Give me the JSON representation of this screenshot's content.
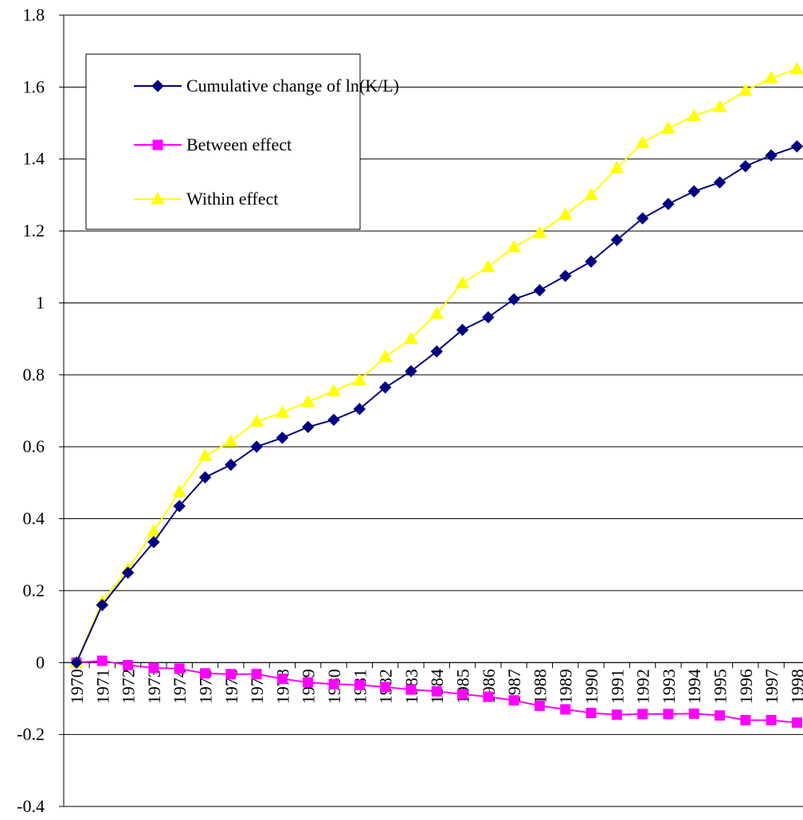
{
  "chart_data": {
    "type": "line",
    "categories": [
      "1970",
      "1971",
      "1972",
      "1973",
      "1974",
      "1975",
      "1976",
      "1977",
      "1978",
      "1979",
      "1980",
      "1981",
      "1982",
      "1983",
      "1984",
      "1985",
      "1986",
      "1987",
      "1988",
      "1989",
      "1990",
      "1991",
      "1992",
      "1993",
      "1994",
      "1995",
      "1996",
      "1997",
      "1998"
    ],
    "series": [
      {
        "name": "Cumulative change of ln(K/L)",
        "color": "#000080",
        "marker": "diamond",
        "values": [
          0,
          0.16,
          0.25,
          0.335,
          0.435,
          0.515,
          0.55,
          0.6,
          0.625,
          0.655,
          0.675,
          0.705,
          0.765,
          0.81,
          0.865,
          0.925,
          0.96,
          1.01,
          1.035,
          1.075,
          1.115,
          1.175,
          1.235,
          1.275,
          1.31,
          1.335,
          1.38,
          1.41,
          1.435
        ]
      },
      {
        "name": "Between effect",
        "color": "#ff00ff",
        "marker": "square",
        "values": [
          0,
          0.005,
          -0.007,
          -0.015,
          -0.017,
          -0.03,
          -0.032,
          -0.032,
          -0.045,
          -0.055,
          -0.06,
          -0.062,
          -0.068,
          -0.075,
          -0.08,
          -0.088,
          -0.095,
          -0.105,
          -0.12,
          -0.13,
          -0.14,
          -0.145,
          -0.143,
          -0.143,
          -0.142,
          -0.147,
          -0.16,
          -0.16,
          -0.167
        ]
      },
      {
        "name": "Within effect",
        "color": "#ffff00",
        "marker": "triangle",
        "values": [
          0,
          0.17,
          0.26,
          0.365,
          0.475,
          0.575,
          0.615,
          0.67,
          0.695,
          0.725,
          0.755,
          0.785,
          0.85,
          0.9,
          0.97,
          1.055,
          1.1,
          1.155,
          1.195,
          1.245,
          1.3,
          1.375,
          1.445,
          1.485,
          1.52,
          1.545,
          1.59,
          1.625,
          1.65
        ]
      }
    ],
    "ylim": [
      -0.4,
      1.8
    ],
    "yticks": [
      -0.4,
      -0.2,
      0,
      0.2,
      0.4,
      0.6,
      0.8,
      1,
      1.2,
      1.4,
      1.6,
      1.8
    ],
    "grid": true,
    "legend": "top-left"
  }
}
